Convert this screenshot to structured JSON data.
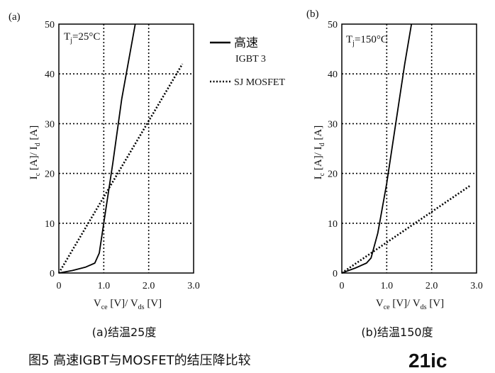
{
  "figure_caption": "图5  高速IGBT与MOSFET的结压降比较",
  "watermark": "21ic",
  "legend": {
    "igbt_label_line1": "高速",
    "igbt_label_line2": "IGBT 3",
    "mosfet_label": "SJ MOSFET"
  },
  "chart_data": [
    {
      "type": "line",
      "panel_label": "(a)",
      "subcaption": "(a)结温25度",
      "annotation": "Tj=25°C",
      "xlabel": "Vce [V]/ Vds [V]",
      "ylabel": "Ic [A]/ Id [A]",
      "xlim": [
        0,
        3.0
      ],
      "ylim": [
        0,
        50
      ],
      "x_ticks": [
        "0",
        "1.0",
        "2.0",
        "3.0"
      ],
      "y_ticks": [
        "0",
        "10",
        "20",
        "30",
        "40",
        "50"
      ],
      "grid": true,
      "series": [
        {
          "name": "高速 IGBT 3",
          "style": "solid",
          "x": [
            0,
            0.3,
            0.6,
            0.8,
            0.9,
            1.0,
            1.2,
            1.4,
            1.7
          ],
          "y": [
            0,
            0.5,
            1.2,
            2.0,
            4.0,
            10,
            22,
            35,
            50
          ]
        },
        {
          "name": "SJ MOSFET",
          "style": "dotted",
          "x": [
            0,
            2.75
          ],
          "y": [
            0,
            42
          ]
        }
      ]
    },
    {
      "type": "line",
      "panel_label": "(b)",
      "subcaption": "(b)结温150度",
      "annotation": "Tj=150°C",
      "xlabel": "Vce [V]/ Vds [V]",
      "ylabel": "Ic [A]/ Id [A]",
      "xlim": [
        0,
        3.0
      ],
      "ylim": [
        0,
        50
      ],
      "x_ticks": [
        "0",
        "1.0",
        "2.0",
        "3.0"
      ],
      "y_ticks": [
        "0",
        "10",
        "20",
        "30",
        "40",
        "50"
      ],
      "grid": true,
      "series": [
        {
          "name": "高速 IGBT 3",
          "style": "solid",
          "x": [
            0,
            0.3,
            0.55,
            0.65,
            0.8,
            1.0,
            1.2,
            1.4,
            1.55
          ],
          "y": [
            0,
            1.0,
            2.0,
            3.0,
            8,
            18,
            30,
            42,
            50
          ]
        },
        {
          "name": "SJ MOSFET",
          "style": "dotted",
          "x": [
            0,
            2.85
          ],
          "y": [
            0,
            17.5
          ]
        }
      ]
    }
  ]
}
